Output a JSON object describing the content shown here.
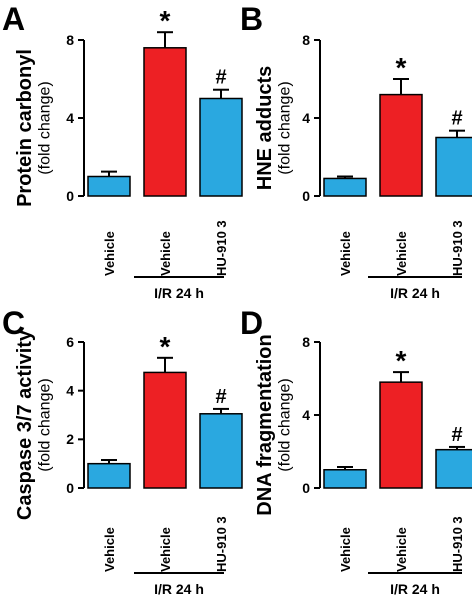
{
  "chart_data": [
    {
      "panel": "A",
      "type": "bar",
      "categories": [
        "Vehicle",
        "Vehicle",
        "HU-910 3"
      ],
      "values": [
        1.0,
        7.6,
        5.0
      ],
      "errors": [
        0.25,
        0.8,
        0.45
      ],
      "colors": [
        "#2aa8e0",
        "#ed2024",
        "#2aa8e0"
      ],
      "significance": [
        "",
        "*",
        "#"
      ],
      "ylabel": "Protein carbonyl",
      "ylabel_sub": "(fold change)",
      "ylim": [
        0,
        10
      ],
      "yticks": [
        0,
        4,
        8
      ],
      "group_label": "I/R 24 h"
    },
    {
      "panel": "B",
      "type": "bar",
      "categories": [
        "Vehicle",
        "Vehicle",
        "HU-910 3"
      ],
      "values": [
        0.9,
        5.2,
        3.0
      ],
      "errors": [
        0.1,
        0.8,
        0.35
      ],
      "colors": [
        "#2aa8e0",
        "#ed2024",
        "#2aa8e0"
      ],
      "significance": [
        "",
        "*",
        "#"
      ],
      "ylabel": "HNE adducts",
      "ylabel_sub": "(fold change)",
      "ylim": [
        0,
        8
      ],
      "yticks": [
        0,
        4,
        8
      ],
      "group_label": "I/R 24 h"
    },
    {
      "panel": "C",
      "type": "bar",
      "categories": [
        "Vehicle",
        "Vehicle",
        "HU-910 3"
      ],
      "values": [
        1.0,
        4.75,
        3.05
      ],
      "errors": [
        0.15,
        0.6,
        0.2
      ],
      "colors": [
        "#2aa8e0",
        "#ed2024",
        "#2aa8e0"
      ],
      "significance": [
        "",
        "*",
        "#"
      ],
      "ylabel": "Caspase 3/7 activity",
      "ylabel_sub": "(fold change)",
      "ylim": [
        0,
        6
      ],
      "yticks": [
        0,
        2,
        4,
        6
      ],
      "group_label": "I/R 24 h"
    },
    {
      "panel": "D",
      "type": "bar",
      "categories": [
        "Vehicle",
        "Vehicle",
        "HU-910 3"
      ],
      "values": [
        1.0,
        5.8,
        2.1
      ],
      "errors": [
        0.15,
        0.55,
        0.15
      ],
      "colors": [
        "#2aa8e0",
        "#ed2024",
        "#2aa8e0"
      ],
      "significance": [
        "",
        "*",
        "#"
      ],
      "ylabel": "DNA fragmentation",
      "ylabel_sub": "(fold change)",
      "ylim": [
        0,
        8
      ],
      "yticks": [
        0,
        4,
        8
      ],
      "group_label": "I/R 24 h"
    }
  ]
}
